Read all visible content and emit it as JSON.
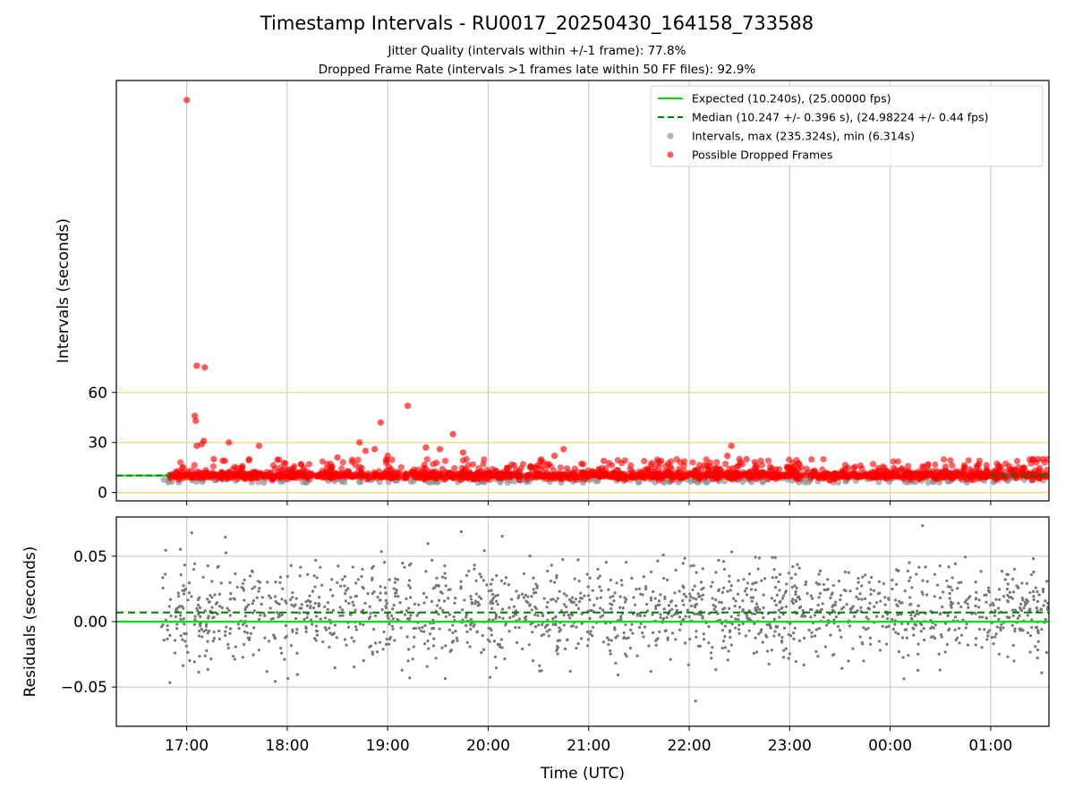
{
  "chart_data": {
    "title": "Timestamp Intervals - RU0017_20250430_164158_733588",
    "subtitle_1": "Jitter Quality (intervals within +/-1 frame): 77.8%",
    "subtitle_2": "Dropped Frame Rate (intervals >1 frames late within 50 FF files): 92.9%",
    "x_label": "Time (UTC)",
    "x_range_hours": [
      16.3,
      25.58
    ],
    "x_ticks": [
      {
        "h": 17,
        "label": "17:00"
      },
      {
        "h": 18,
        "label": "18:00"
      },
      {
        "h": 19,
        "label": "19:00"
      },
      {
        "h": 20,
        "label": "20:00"
      },
      {
        "h": 21,
        "label": "21:00"
      },
      {
        "h": 22,
        "label": "22:00"
      },
      {
        "h": 23,
        "label": "23:00"
      },
      {
        "h": 24,
        "label": "00:00"
      },
      {
        "h": 25,
        "label": "01:00"
      }
    ],
    "top": {
      "type": "scatter",
      "ylabel": "Intervals (seconds)",
      "ylim": [
        -5,
        247
      ],
      "y_ticks": [
        0,
        30,
        60
      ],
      "y_tick_labels": [
        "0",
        "30",
        "60"
      ],
      "hlines": [
        0,
        30,
        60
      ],
      "hline_color": "#f5d67a",
      "expected": 10.24,
      "median": 10.247,
      "legend": [
        "Expected (10.240s), (25.00000 fps)",
        "Median (10.247 +/- 0.396 s), (24.98224 +/- 0.44 fps)",
        "Intervals, max (235.324s), min (6.314s)",
        "Possible Dropped Frames"
      ],
      "legend_position": "upper right",
      "series_colors": {
        "expected": "#00e000",
        "median": "#007a00",
        "intervals": "#8c8c8c",
        "dropped": "#ff0000"
      },
      "dropped_outliers": [
        {
          "t": 17.0,
          "y": 235.3
        },
        {
          "t": 17.1,
          "y": 76.0
        },
        {
          "t": 17.18,
          "y": 75.0
        },
        {
          "t": 17.08,
          "y": 46.0
        },
        {
          "t": 17.09,
          "y": 43.0
        },
        {
          "t": 17.17,
          "y": 31.0
        },
        {
          "t": 17.15,
          "y": 29.0
        },
        {
          "t": 17.1,
          "y": 28.0
        },
        {
          "t": 17.42,
          "y": 30.0
        },
        {
          "t": 17.72,
          "y": 28.0
        },
        {
          "t": 19.2,
          "y": 52.0
        },
        {
          "t": 18.93,
          "y": 42.0
        },
        {
          "t": 18.72,
          "y": 30.0
        },
        {
          "t": 18.87,
          "y": 26.0
        },
        {
          "t": 18.78,
          "y": 25.0
        },
        {
          "t": 19.38,
          "y": 27.0
        },
        {
          "t": 19.52,
          "y": 26.0
        },
        {
          "t": 19.65,
          "y": 35.0
        },
        {
          "t": 19.75,
          "y": 24.0
        },
        {
          "t": 19.0,
          "y": 22.0
        },
        {
          "t": 18.5,
          "y": 21.0
        },
        {
          "t": 20.75,
          "y": 26.0
        },
        {
          "t": 20.66,
          "y": 22.0
        },
        {
          "t": 22.42,
          "y": 28.0
        },
        {
          "t": 22.38,
          "y": 22.0
        },
        {
          "t": 22.5,
          "y": 20.0
        },
        {
          "t": 22.57,
          "y": 20.0
        },
        {
          "t": 25.42,
          "y": 20.0
        },
        {
          "t": 25.47,
          "y": 20.0
        },
        {
          "t": 25.52,
          "y": 20.0
        },
        {
          "t": 25.57,
          "y": 20.0
        },
        {
          "t": 17.27,
          "y": 20.0
        },
        {
          "t": 17.38,
          "y": 19.0
        },
        {
          "t": 20.52,
          "y": 19.0
        },
        {
          "t": 21.15,
          "y": 19.0
        },
        {
          "t": 21.72,
          "y": 19.0
        }
      ]
    },
    "bottom": {
      "type": "scatter",
      "ylabel": "Residuals (seconds)",
      "ylim": [
        -0.08,
        0.08
      ],
      "y_ticks": [
        -0.05,
        0.0,
        0.05
      ],
      "y_tick_labels": [
        "−0.05",
        "0.00",
        "0.05"
      ],
      "expected_residual": 0.0,
      "median_residual": 0.007,
      "point_color": "#777777"
    }
  }
}
